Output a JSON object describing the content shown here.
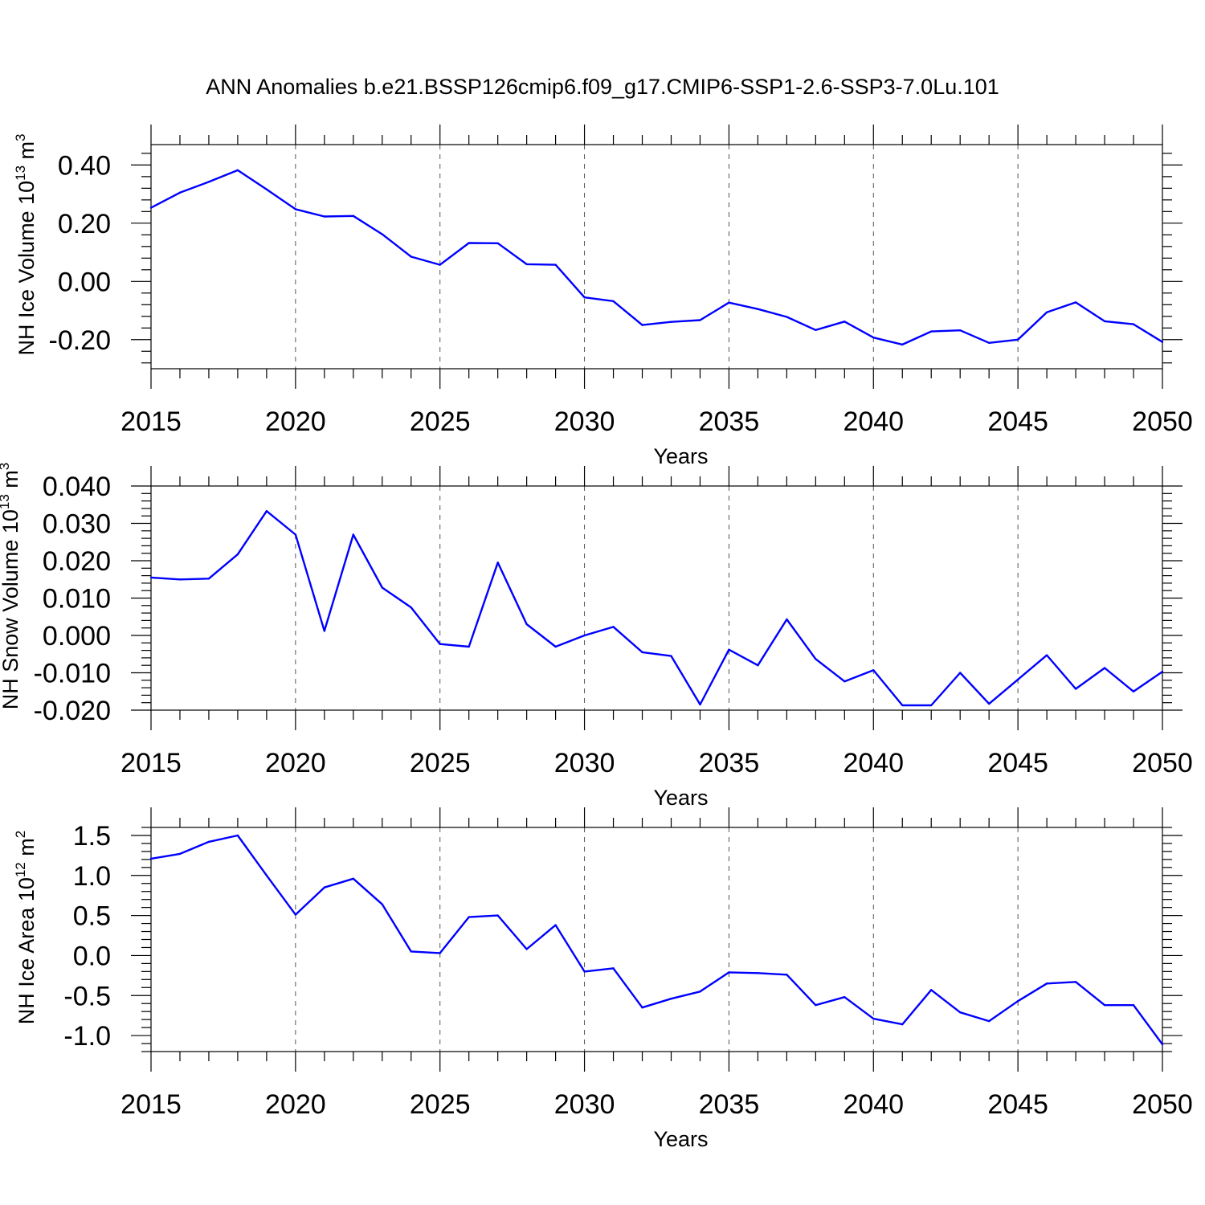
{
  "title": "ANN Anomalies b.e21.BSSP126cmip6.f09_g17.CMIP6-SSP1-2.6-SSP3-7.0Lu.101",
  "colors": {
    "line": "#0000ff",
    "frame": "#000000",
    "grid": "#555555"
  },
  "chart_data": [
    {
      "type": "line",
      "ylabel": "NH Ice Volume 10",
      "ylabel_sup": "13",
      "ylabel_unit": " m",
      "ylabel_unit_sup": "3",
      "xlabel": "Years",
      "xlim": [
        2015,
        2050
      ],
      "ylim": [
        -0.3,
        0.47
      ],
      "yticks": [
        0.4,
        0.2,
        0.0,
        -0.2
      ],
      "ytick_labels": [
        "0.40",
        "0.20",
        "0.00",
        "-0.20"
      ],
      "yminor_step": 0.04,
      "xticks": [
        2015,
        2020,
        2025,
        2030,
        2035,
        2040,
        2045,
        2050
      ],
      "xtick_labels": [
        "2015",
        "2020",
        "2025",
        "2030",
        "2035",
        "2040",
        "2045",
        "2050"
      ],
      "grid": "dashed vertical at major x ticks",
      "x": [
        2015,
        2016,
        2017,
        2018,
        2019,
        2020,
        2021,
        2022,
        2023,
        2024,
        2025,
        2026,
        2027,
        2028,
        2029,
        2030,
        2031,
        2032,
        2033,
        2034,
        2035,
        2036,
        2037,
        2038,
        2039,
        2040,
        2041,
        2042,
        2043,
        2044,
        2045,
        2046,
        2047,
        2048,
        2049,
        2050
      ],
      "y": [
        0.253,
        0.305,
        0.342,
        0.382,
        0.316,
        0.248,
        0.223,
        0.225,
        0.162,
        0.085,
        0.057,
        0.132,
        0.131,
        0.059,
        0.057,
        -0.055,
        -0.068,
        -0.15,
        -0.139,
        -0.133,
        -0.073,
        -0.095,
        -0.122,
        -0.167,
        -0.138,
        -0.193,
        -0.217,
        -0.172,
        -0.168,
        -0.211,
        -0.2,
        -0.106,
        -0.072,
        -0.137,
        -0.147,
        -0.208
      ]
    },
    {
      "type": "line",
      "ylabel": "NH Snow Volume 10",
      "ylabel_sup": "13",
      "ylabel_unit": " m",
      "ylabel_unit_sup": "3",
      "xlabel": "Years",
      "xlim": [
        2015,
        2050
      ],
      "ylim": [
        -0.02,
        0.04
      ],
      "yticks": [
        0.04,
        0.03,
        0.02,
        0.01,
        0.0,
        -0.01,
        -0.02
      ],
      "ytick_labels": [
        "0.040",
        "0.030",
        "0.020",
        "0.010",
        "0.000",
        "-0.010",
        "-0.020"
      ],
      "yminor_step": 0.002,
      "xticks": [
        2015,
        2020,
        2025,
        2030,
        2035,
        2040,
        2045,
        2050
      ],
      "xtick_labels": [
        "2015",
        "2020",
        "2025",
        "2030",
        "2035",
        "2040",
        "2045",
        "2050"
      ],
      "grid": "dashed vertical at major x ticks",
      "x": [
        2015,
        2016,
        2017,
        2018,
        2019,
        2020,
        2021,
        2022,
        2023,
        2024,
        2025,
        2026,
        2027,
        2028,
        2029,
        2030,
        2031,
        2032,
        2033,
        2034,
        2035,
        2036,
        2037,
        2038,
        2039,
        2040,
        2041,
        2042,
        2043,
        2044,
        2045,
        2046,
        2047,
        2048,
        2049,
        2050
      ],
      "y": [
        0.0155,
        0.015,
        0.0152,
        0.0217,
        0.0333,
        0.027,
        0.0012,
        0.027,
        0.0128,
        0.0075,
        -0.0023,
        -0.003,
        0.0195,
        0.003,
        -0.003,
        0.0,
        0.0023,
        -0.0045,
        -0.0055,
        -0.0185,
        -0.0038,
        -0.008,
        0.0043,
        -0.0063,
        -0.0123,
        -0.0093,
        -0.0187,
        -0.0187,
        -0.01,
        -0.0183,
        -0.0118,
        -0.0053,
        -0.0143,
        -0.0087,
        -0.015,
        -0.0097
      ]
    },
    {
      "type": "line",
      "ylabel": "NH Ice Area 10",
      "ylabel_sup": "12",
      "ylabel_unit": " m",
      "ylabel_unit_sup": "2",
      "xlabel": "Years",
      "xlim": [
        2015,
        2050
      ],
      "ylim": [
        -1.2,
        1.6
      ],
      "yticks": [
        1.5,
        1.0,
        0.5,
        0.0,
        -0.5,
        -1.0
      ],
      "ytick_labels": [
        "1.5",
        "1.0",
        "0.5",
        "0.0",
        "-0.5",
        "-1.0"
      ],
      "yminor_step": 0.1,
      "xticks": [
        2015,
        2020,
        2025,
        2030,
        2035,
        2040,
        2045,
        2050
      ],
      "xtick_labels": [
        "2015",
        "2020",
        "2025",
        "2030",
        "2035",
        "2040",
        "2045",
        "2050"
      ],
      "grid": "dashed vertical at major x ticks",
      "x": [
        2015,
        2016,
        2017,
        2018,
        2019,
        2020,
        2021,
        2022,
        2023,
        2024,
        2025,
        2026,
        2027,
        2028,
        2029,
        2030,
        2031,
        2032,
        2033,
        2034,
        2035,
        2036,
        2037,
        2038,
        2039,
        2040,
        2041,
        2042,
        2043,
        2044,
        2045,
        2046,
        2047,
        2048,
        2049,
        2050
      ],
      "y": [
        1.21,
        1.27,
        1.42,
        1.5,
        1.0,
        0.51,
        0.85,
        0.96,
        0.64,
        0.05,
        0.03,
        0.48,
        0.5,
        0.08,
        0.38,
        -0.2,
        -0.16,
        -0.65,
        -0.54,
        -0.45,
        -0.21,
        -0.22,
        -0.24,
        -0.62,
        -0.52,
        -0.79,
        -0.86,
        -0.43,
        -0.71,
        -0.82,
        -0.57,
        -0.35,
        -0.33,
        -0.62,
        -0.62,
        -1.11
      ]
    }
  ]
}
